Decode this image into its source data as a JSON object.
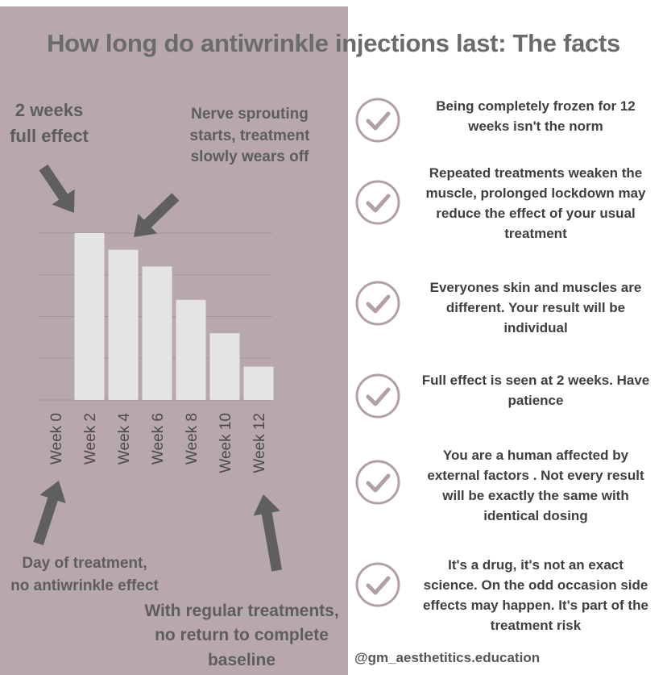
{
  "title": "How long do antiwrinkle injections last: The facts",
  "annotations": {
    "two_weeks": [
      "2 weeks",
      "full effect"
    ],
    "nerve": [
      "Nerve sprouting",
      "starts, treatment",
      "slowly wears off"
    ],
    "day_of": [
      "Day of treatment,",
      "no antiwrinkle effect"
    ],
    "regular": [
      "With regular treatments,",
      "no return to complete",
      "baseline"
    ]
  },
  "chart_data": {
    "type": "bar",
    "categories": [
      "Week 0",
      "Week 2",
      "Week 4",
      "Week 6",
      "Week 8",
      "Week 10",
      "Week 12"
    ],
    "values": [
      0,
      100,
      90,
      80,
      60,
      40,
      20
    ],
    "ylim": [
      0,
      100
    ],
    "grid": true,
    "title": "",
    "xlabel": "",
    "ylabel": ""
  },
  "facts": [
    [
      "Being completely frozen for 12",
      "weeks isn't the norm"
    ],
    [
      "Repeated treatments weaken the",
      "muscle, prolonged lockdown may",
      "reduce the effect of your usual",
      "treatment"
    ],
    [
      "Everyones skin and muscles are",
      "different. Your result will be",
      "individual"
    ],
    [
      "Full effect is seen at 2 weeks. Have",
      "patience"
    ],
    [
      "You are a human affected by",
      "external factors . Not every result",
      "will be exactly the same with",
      "identical dosing"
    ],
    [
      "It's a drug, it's not an exact",
      "science. On the odd occasion side",
      "effects may happen. It's part of the",
      "treatment risk"
    ]
  ],
  "credit": "@gm_aesthetitics.education",
  "icons": {
    "check": "check-circle-icon",
    "arrow": "arrow-icon"
  },
  "colors": {
    "panel": "#b9a8ab",
    "bar": "#e4e4e4",
    "arrow": "#5f5f5f",
    "text": "#3f3f3f",
    "check": "#b3a0a4"
  }
}
